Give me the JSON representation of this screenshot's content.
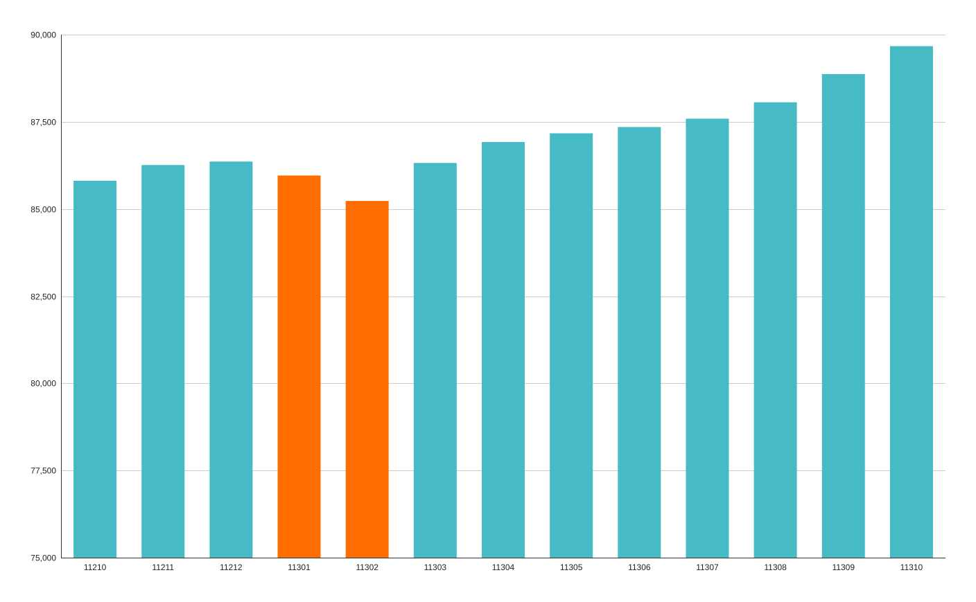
{
  "colors": {
    "default_bar": "#46bbc5",
    "highlight_bar": "#ff6d00",
    "grid": "#cccccc",
    "axis": "#333333",
    "background": "#ffffff"
  },
  "chart_data": {
    "type": "bar",
    "title": "",
    "xlabel": "",
    "ylabel": "",
    "grid": true,
    "legend": "none",
    "ylim": [
      75000,
      90000
    ],
    "yticks": [
      75000,
      77500,
      80000,
      82500,
      85000,
      87500,
      90000
    ],
    "ytick_labels": [
      "75,000",
      "77,500",
      "80,000",
      "82,500",
      "85,000",
      "87,500",
      "90,000"
    ],
    "categories": [
      "11210",
      "11211",
      "11212",
      "11301",
      "11302",
      "11303",
      "11304",
      "11305",
      "11306",
      "11307",
      "11308",
      "11309",
      "11310"
    ],
    "values": [
      85810,
      86260,
      86360,
      85960,
      85230,
      86320,
      86920,
      87170,
      87350,
      87590,
      88060,
      88870,
      89670
    ],
    "bar_colors": [
      "#46bbc5",
      "#46bbc5",
      "#46bbc5",
      "#ff6d00",
      "#ff6d00",
      "#46bbc5",
      "#46bbc5",
      "#46bbc5",
      "#46bbc5",
      "#46bbc5",
      "#46bbc5",
      "#46bbc5",
      "#46bbc5"
    ]
  }
}
